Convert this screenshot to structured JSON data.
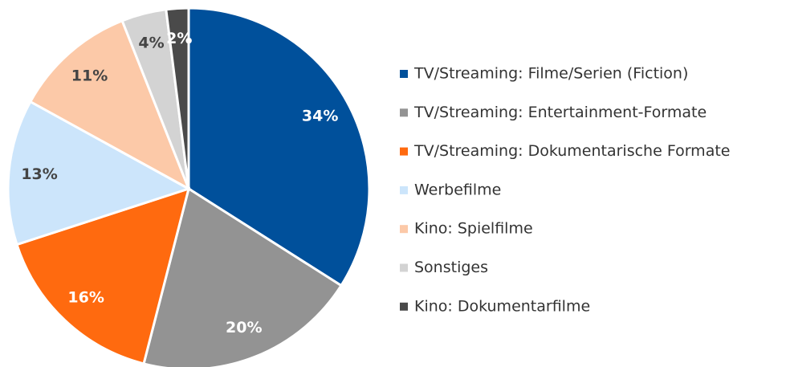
{
  "chart_data": {
    "type": "pie",
    "categories": [
      "TV/Streaming: Filme/Serien (Fiction)",
      "TV/Streaming: Entertainment-Formate",
      "TV/Streaming: Dokumentarische Formate",
      "Werbefilme",
      "Kino: Spielfilme",
      "Sonstiges",
      "Kino: Dokumentarfilme"
    ],
    "values": [
      34,
      20,
      16,
      13,
      11,
      4,
      2
    ],
    "value_labels": [
      "34%",
      "20%",
      "16%",
      "13%",
      "11%",
      "4%",
      "2%"
    ],
    "colors": [
      "#00509b",
      "#939393",
      "#ff6a0f",
      "#cce5fb",
      "#fcc9a8",
      "#d3d3d3",
      "#4a4a4a"
    ],
    "legend": "right"
  }
}
